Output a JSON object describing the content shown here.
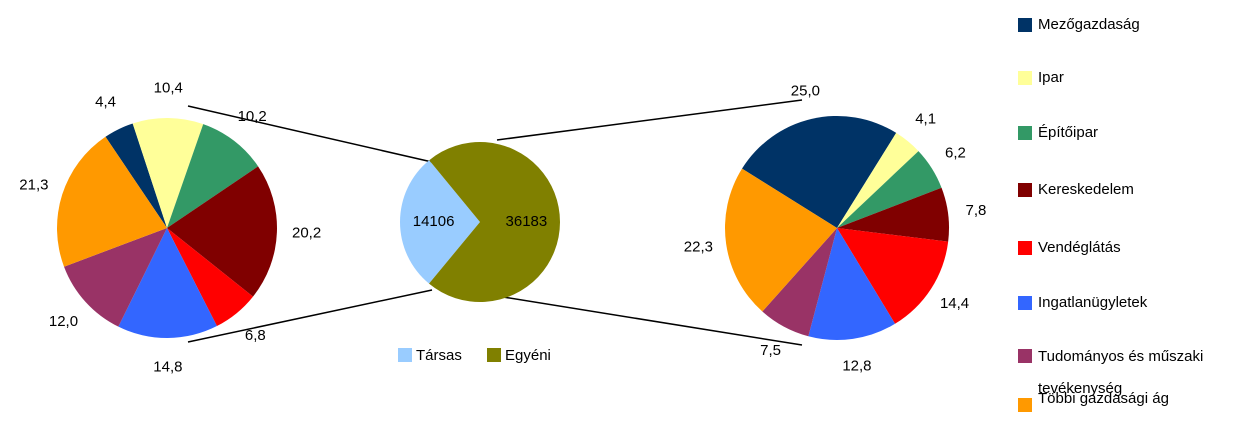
{
  "chart_data": [
    {
      "type": "pie",
      "categories": [
        "Mezőgazdaság",
        "Ipar",
        "Építőipar",
        "Kereskedelem",
        "Vendéglátás",
        "Ingatlanügyletek",
        "Tudományos és műszaki tevékenység",
        "Többi gazdasági ág"
      ],
      "colors": [
        "#003366",
        "#ffff99",
        "#339966",
        "#800000",
        "#ff0000",
        "#3366ff",
        "#993366",
        "#ff9900"
      ],
      "values": [
        4.4,
        10.4,
        10.2,
        20.2,
        6.8,
        14.8,
        12.0,
        21.3
      ],
      "value_labels": [
        "4,4",
        "10,4",
        "10,2",
        "20,2",
        "6,8",
        "14,8",
        "12,0",
        "21,3"
      ]
    },
    {
      "type": "pie",
      "categories": [
        "Társas",
        "Egyéni"
      ],
      "colors": [
        "#99ccff",
        "#808000"
      ],
      "values": [
        14106,
        36183
      ]
    },
    {
      "type": "pie",
      "categories": [
        "Mezőgazdaság",
        "Ipar",
        "Építőipar",
        "Kereskedelem",
        "Vendéglátás",
        "Ingatlanügyletek",
        "Tudományos és műszaki tevékenység",
        "Többi gazdasági ág"
      ],
      "colors": [
        "#003366",
        "#ffff99",
        "#339966",
        "#800000",
        "#ff0000",
        "#3366ff",
        "#993366",
        "#ff9900"
      ],
      "values": [
        25.0,
        4.1,
        6.2,
        7.8,
        14.4,
        12.8,
        7.5,
        22.3
      ],
      "value_labels": [
        "25,0",
        "4,1",
        "6,2",
        "7,8",
        "14,4",
        "12,8",
        "7,5",
        "22,3"
      ]
    }
  ]
}
